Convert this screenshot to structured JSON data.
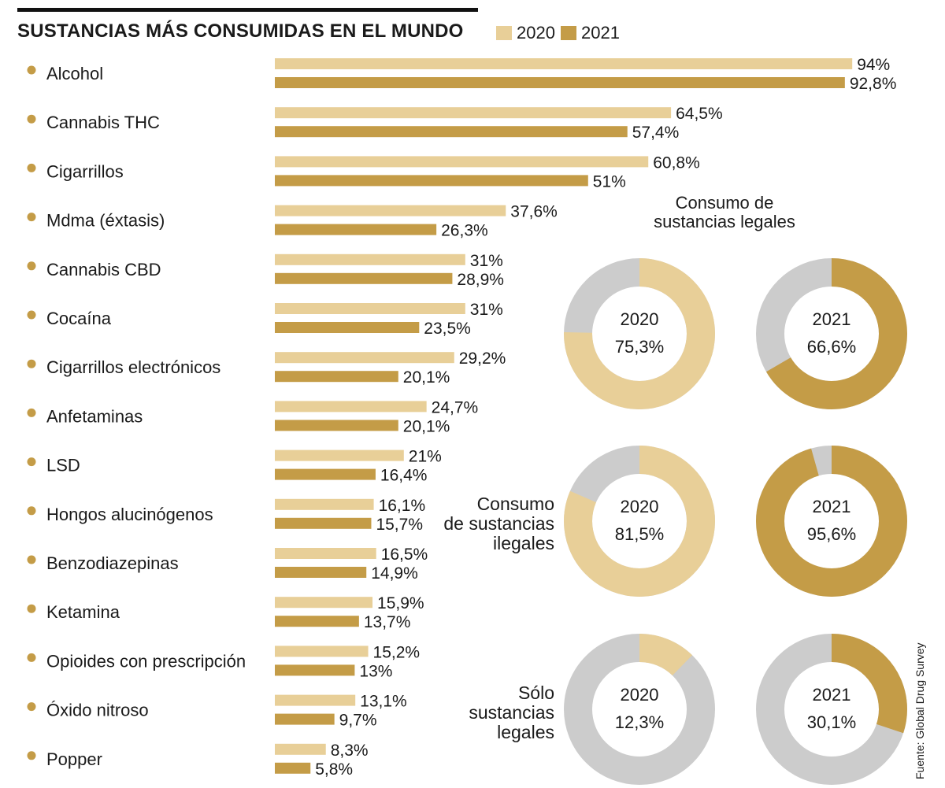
{
  "header": {
    "title": "SUSTANCIAS MÁS CONSUMIDAS EN EL MUNDO"
  },
  "colors": {
    "y2020": "#e8cf98",
    "y2021": "#c49c47",
    "grey": "#cccccc",
    "bullet": "#c49c47"
  },
  "chart_data": [
    {
      "type": "bar",
      "orientation": "horizontal",
      "title": "SUSTANCIAS MÁS CONSUMIDAS EN EL MUNDO",
      "categories": [
        "Alcohol",
        "Cannabis THC",
        "Cigarrillos",
        "Mdma (éxtasis)",
        "Cannabis CBD",
        "Cocaína",
        "Cigarrillos electrónicos",
        "Anfetaminas",
        "LSD",
        "Hongos alucinógenos",
        "Benzodiazepinas",
        "Ketamina",
        "Opioides con prescripción",
        "Óxido nitroso",
        "Popper"
      ],
      "series": [
        {
          "name": "2020",
          "values": [
            94,
            64.5,
            60.8,
            37.6,
            31,
            31,
            29.2,
            24.7,
            21,
            16.1,
            16.5,
            15.9,
            15.2,
            13.1,
            8.3
          ],
          "labels": [
            "94%",
            "64,5%",
            "60,8%",
            "37,6%",
            "31%",
            "31%",
            "29,2%",
            "24,7%",
            "21%",
            "16,1%",
            "16,5%",
            "15,9%",
            "15,2%",
            "13,1%",
            "8,3%"
          ]
        },
        {
          "name": "2021",
          "values": [
            92.8,
            57.4,
            51,
            26.3,
            28.9,
            23.5,
            20.1,
            20.1,
            16.4,
            15.7,
            14.9,
            13.7,
            13,
            9.7,
            5.8
          ],
          "labels": [
            "92,8%",
            "57,4%",
            "51%",
            "26,3%",
            "28,9%",
            "23,5%",
            "20,1%",
            "20,1%",
            "16,4%",
            "15,7%",
            "14,9%",
            "13,7%",
            "13%",
            "9,7%",
            "5,8%"
          ]
        }
      ],
      "xlim": [
        0,
        100
      ],
      "legend": "top-right"
    },
    {
      "type": "pie",
      "title": "Consumo de sustancias legales",
      "charts": [
        {
          "year": "2020",
          "value": 75.3,
          "label": "75,3%"
        },
        {
          "year": "2021",
          "value": 66.6,
          "label": "66,6%"
        }
      ]
    },
    {
      "type": "pie",
      "title": "Consumo de sustancias ilegales",
      "charts": [
        {
          "year": "2020",
          "value": 81.5,
          "label": "81,5%"
        },
        {
          "year": "2021",
          "value": 95.6,
          "label": "95,6%"
        }
      ]
    },
    {
      "type": "pie",
      "title": "Sólo sustancias legales",
      "charts": [
        {
          "year": "2020",
          "value": 12.3,
          "label": "12,3%"
        },
        {
          "year": "2021",
          "value": 30.1,
          "label": "30,1%"
        }
      ]
    }
  ],
  "donut_titles": {
    "legal_line1": "Consumo de",
    "legal_line2": "sustancias legales",
    "illegal_line1": "Consumo",
    "illegal_line2": "de sustancias",
    "illegal_line3": "ilegales",
    "only_line1": "Sólo",
    "only_line2": "sustancias",
    "only_line3": "legales"
  },
  "source": "Fuente: Global Drug Survey"
}
